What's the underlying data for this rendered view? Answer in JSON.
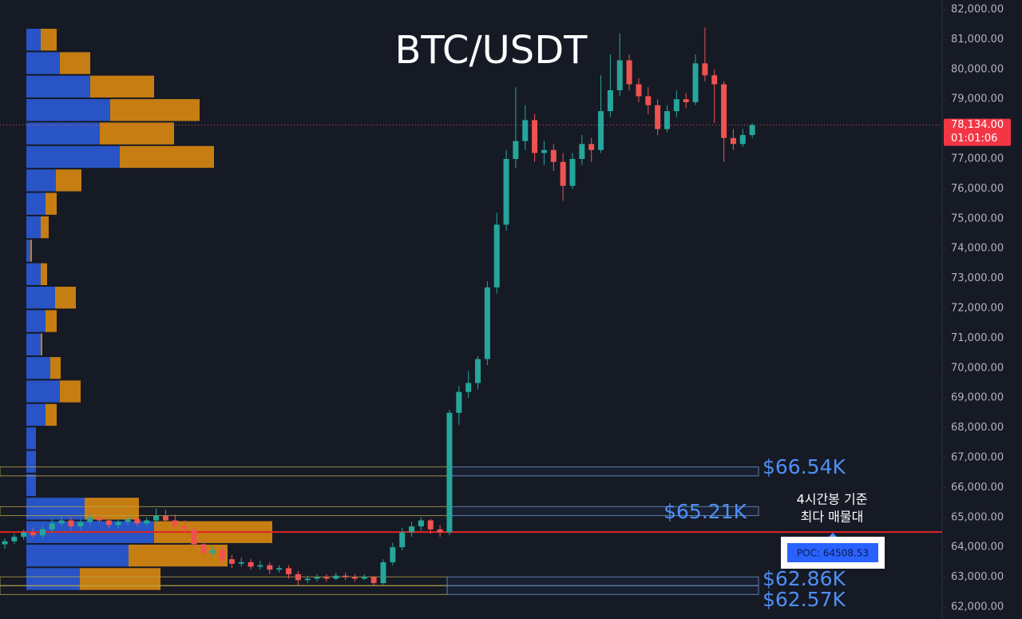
{
  "chart_data": {
    "type": "candlestick",
    "title": "BTC/USDT",
    "ylim": [
      62000,
      82000
    ],
    "yticks": [
      {
        "value": 62000,
        "label": "62,000.00"
      },
      {
        "value": 63000,
        "label": "63,000.00"
      },
      {
        "value": 64000,
        "label": "64,000.00"
      },
      {
        "value": 65000,
        "label": "65,000.00"
      },
      {
        "value": 66000,
        "label": "66,000.00"
      },
      {
        "value": 67000,
        "label": "67,000.00"
      },
      {
        "value": 68000,
        "label": "68,000.00"
      },
      {
        "value": 69000,
        "label": "69,000.00"
      },
      {
        "value": 70000,
        "label": "70,000.00"
      },
      {
        "value": 71000,
        "label": "71,000.00"
      },
      {
        "value": 72000,
        "label": "72,000.00"
      },
      {
        "value": 73000,
        "label": "73,000.00"
      },
      {
        "value": 74000,
        "label": "74,000.00"
      },
      {
        "value": 75000,
        "label": "75,000.00"
      },
      {
        "value": 76000,
        "label": "76,000.00"
      },
      {
        "value": 77000,
        "label": "77,000.00"
      },
      {
        "value": 78000,
        "label": "78,000.00"
      },
      {
        "value": 79000,
        "label": "79,000.00"
      },
      {
        "value": 80000,
        "label": "80,000.00"
      },
      {
        "value": 81000,
        "label": "81,000.00"
      },
      {
        "value": 82000,
        "label": "82,000.00"
      }
    ],
    "up_color": "#26a69a",
    "down_color": "#ef5350",
    "candles": {
      "open": [
        64100,
        64200,
        64350,
        64500,
        64400,
        64600,
        64800,
        64900,
        64700,
        64850,
        65000,
        64900,
        64750,
        64850,
        64950,
        64800,
        64900,
        65050,
        64900,
        64700,
        64600,
        64100,
        63800,
        63900,
        63600,
        63450,
        63500,
        63350,
        63400,
        63250,
        63300,
        63100,
        62900,
        62950,
        63000,
        62950,
        63050,
        63000,
        62950,
        63000,
        62800,
        63500,
        64000,
        64500,
        64700,
        64900,
        64600,
        64500,
        68500,
        69200,
        69500,
        70300,
        72700,
        74800,
        77000,
        77600,
        78300,
        77200,
        77300,
        76900,
        76100,
        77000,
        77500,
        77300,
        78600,
        79300,
        80300,
        79500,
        79100,
        78800,
        78000,
        78600,
        79000,
        78900,
        80200,
        79800,
        79500,
        77700,
        77500,
        77800
      ],
      "high": [
        64300,
        64450,
        64600,
        64650,
        64700,
        64950,
        65050,
        65000,
        64950,
        65150,
        65100,
        65000,
        64950,
        65050,
        65050,
        65000,
        65300,
        65250,
        65100,
        64900,
        64700,
        64250,
        64050,
        64000,
        63750,
        63650,
        63600,
        63550,
        63500,
        63400,
        63400,
        63200,
        63050,
        63100,
        63100,
        63150,
        63150,
        63100,
        63100,
        63050,
        63600,
        64150,
        64650,
        64850,
        65000,
        64950,
        64750,
        68600,
        69400,
        69900,
        70400,
        72900,
        75200,
        77300,
        79400,
        78800,
        78500,
        77600,
        77500,
        77200,
        77200,
        77800,
        77700,
        79800,
        80500,
        81200,
        80500,
        79700,
        79400,
        79000,
        78800,
        79300,
        79200,
        80500,
        81400,
        80000,
        79600,
        78000,
        78000,
        78200
      ],
      "low": [
        63950,
        64100,
        64250,
        64300,
        64300,
        64500,
        64700,
        64600,
        64600,
        64750,
        64800,
        64650,
        64650,
        64750,
        64700,
        64700,
        64800,
        64850,
        64600,
        64450,
        63950,
        63650,
        63700,
        63450,
        63300,
        63350,
        63250,
        63250,
        63100,
        63150,
        62950,
        62700,
        62800,
        62850,
        62850,
        62900,
        62900,
        62850,
        62900,
        62700,
        62750,
        63400,
        63900,
        64350,
        64550,
        64450,
        64350,
        64400,
        68100,
        69000,
        69300,
        70100,
        72500,
        74600,
        76700,
        77300,
        76900,
        76800,
        76600,
        75600,
        76000,
        76800,
        76900,
        77200,
        78400,
        79100,
        79300,
        78900,
        78500,
        77800,
        77900,
        78400,
        78700,
        78800,
        79600,
        78200,
        76900,
        77300,
        77400,
        77700
      ],
      "close": [
        64200,
        64350,
        64500,
        64400,
        64600,
        64800,
        64900,
        64700,
        64850,
        65000,
        64900,
        64750,
        64850,
        64950,
        64800,
        64900,
        65050,
        64900,
        64700,
        64600,
        64100,
        63800,
        63900,
        63600,
        63450,
        63500,
        63350,
        63400,
        63250,
        63300,
        63100,
        62900,
        62950,
        63000,
        62950,
        63050,
        63000,
        62950,
        63000,
        62800,
        63500,
        64000,
        64500,
        64700,
        64900,
        64600,
        64500,
        68500,
        69200,
        69500,
        70300,
        72700,
        74800,
        77000,
        77600,
        78300,
        77200,
        77300,
        76900,
        76100,
        77000,
        77500,
        77300,
        78600,
        79300,
        80300,
        79500,
        79100,
        78800,
        78000,
        78600,
        79000,
        78900,
        80200,
        79800,
        79500,
        77700,
        77500,
        77800,
        78134
      ]
    },
    "last_price": 78134,
    "last_price_label": "78,134.00",
    "countdown": "01:01:06",
    "volume_profile": {
      "bin_edges": [
        81385,
        80600,
        79815,
        79030,
        78245,
        77460,
        76675,
        75890,
        75105,
        74320,
        73535,
        72750,
        71965,
        71180,
        70395,
        69610,
        68825,
        68040,
        67255,
        66470,
        65685,
        64900,
        64115,
        63330,
        62545
      ],
      "buy": [
        18,
        42,
        80,
        105,
        92,
        117,
        37,
        24,
        18,
        5,
        18,
        36,
        24,
        18,
        30,
        42,
        24,
        12,
        12,
        12,
        73,
        160,
        128,
        67
      ],
      "sell": [
        20,
        38,
        80,
        112,
        93,
        118,
        32,
        14,
        10,
        2,
        8,
        26,
        14,
        2,
        13,
        26,
        14,
        0,
        0,
        0,
        68,
        148,
        124,
        101
      ],
      "buy_color": "#2a5bd7",
      "sell_color": "#d98a12"
    },
    "levels": [
      {
        "value": 66540,
        "label": "$66.54K"
      },
      {
        "value": 65210,
        "label": "$65.21K"
      },
      {
        "value": 62860,
        "label": "$62.86K"
      },
      {
        "value": 62570,
        "label": "$62.57K"
      }
    ],
    "poc": {
      "value": 64508.53,
      "label": "POC: 64508.53"
    },
    "annotation": [
      "4시간봉 기준",
      "최다 매물대"
    ]
  }
}
